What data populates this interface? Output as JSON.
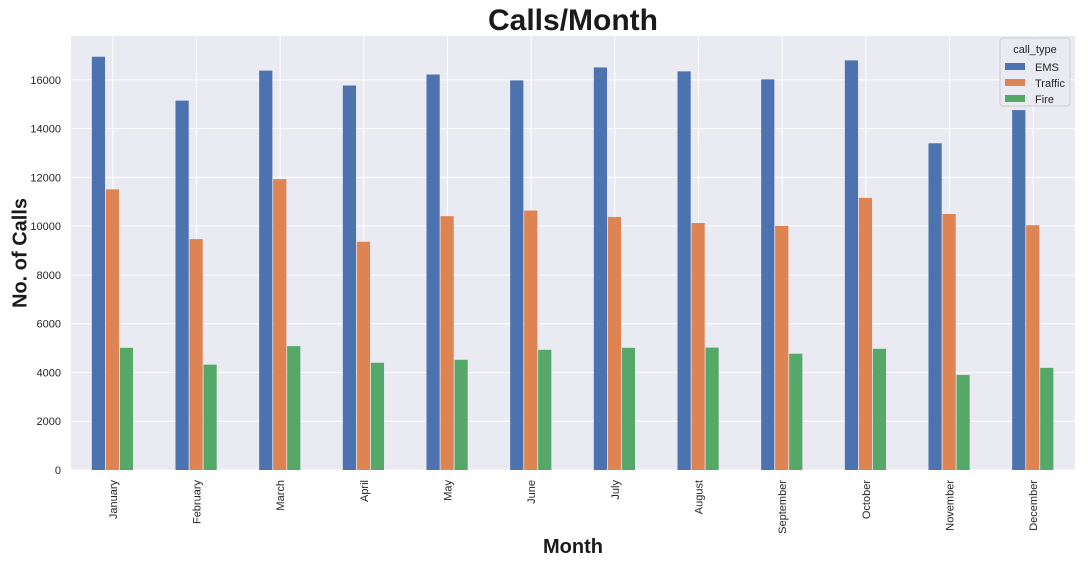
{
  "chart_data": {
    "type": "bar",
    "title": "Calls/Month",
    "xlabel": "Month",
    "ylabel": "No. of Calls",
    "categories": [
      "January",
      "February",
      "March",
      "April",
      "May",
      "June",
      "July",
      "August",
      "September",
      "October",
      "November",
      "December"
    ],
    "series": [
      {
        "name": "EMS",
        "color": "#4c72b0",
        "values": [
          16950,
          15150,
          16380,
          15770,
          16220,
          15980,
          16510,
          16350,
          16020,
          16800,
          13400,
          14760
        ]
      },
      {
        "name": "Traffic",
        "color": "#dd8452",
        "values": [
          11510,
          9470,
          11930,
          9360,
          10410,
          10640,
          10380,
          10130,
          10010,
          11160,
          10500,
          10040
        ]
      },
      {
        "name": "Fire",
        "color": "#55a868",
        "values": [
          5010,
          4320,
          5080,
          4400,
          4520,
          4930,
          5010,
          5020,
          4770,
          4970,
          3900,
          4190
        ]
      }
    ],
    "yticks": [
      0,
      2000,
      4000,
      6000,
      8000,
      10000,
      12000,
      14000,
      16000
    ],
    "ylim": [
      0,
      17800
    ],
    "grid": true,
    "legend": {
      "title": "call_type",
      "position": "top-right"
    },
    "background_color": "#eaeaf2",
    "grid_color": "#ffffff"
  }
}
